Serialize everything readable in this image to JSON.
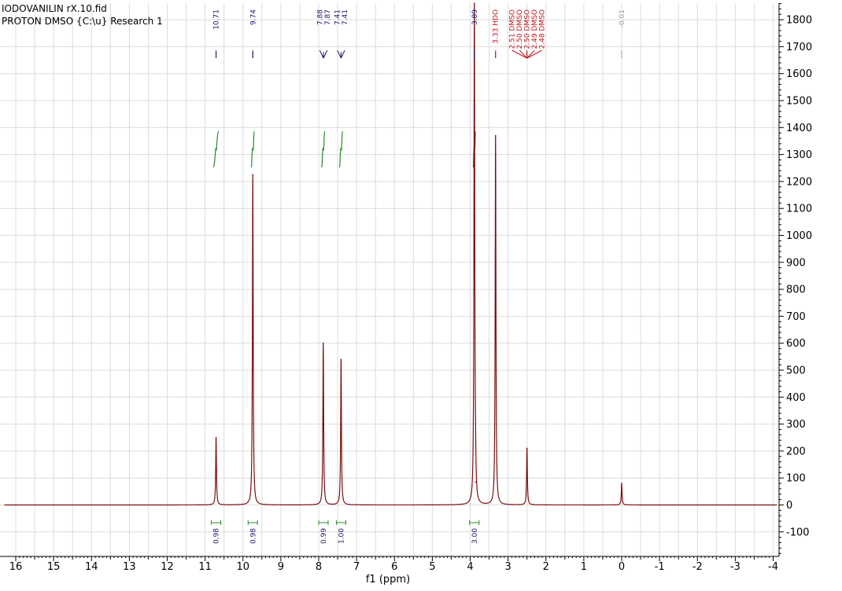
{
  "header": {
    "line1": "IODOVANILIN rX.10.fid",
    "line2": "PROTON DMSO {C:\\u} Research 1"
  },
  "chart_data": {
    "type": "line",
    "xlabel": "f1 (ppm)",
    "ylabel": "",
    "xlim": [
      16.3,
      -4.1
    ],
    "ylim": [
      -190,
      1870
    ],
    "x_ticks": [
      16,
      15,
      14,
      13,
      12,
      11,
      10,
      9,
      8,
      7,
      6,
      5,
      4,
      3,
      2,
      1,
      0,
      -1,
      -2,
      -3,
      -4
    ],
    "x_tick_labels": [
      "16",
      "15",
      "14",
      "13",
      "12",
      "11",
      "10",
      "9",
      "8",
      "7",
      "6",
      "5",
      "4",
      "3",
      "2",
      "1",
      "0",
      "-1",
      "-2",
      "-3",
      "-4"
    ],
    "y_ticks": [
      -100,
      0,
      100,
      200,
      300,
      400,
      500,
      600,
      700,
      800,
      900,
      1000,
      1100,
      1200,
      1300,
      1400,
      1500,
      1600,
      1700,
      1800
    ],
    "y_tick_labels": [
      "-100",
      "0",
      "100",
      "200",
      "300",
      "400",
      "500",
      "600",
      "700",
      "800",
      "900",
      "1000",
      "1100",
      "1200",
      "1300",
      "1400",
      "1500",
      "1600",
      "1700",
      "1800"
    ],
    "grid": true,
    "y_axis_side": "right",
    "spectrum_color": "#7a0f0f",
    "series": [
      {
        "peaks": [
          {
            "x": 10.71,
            "y": 250
          },
          {
            "x": 9.74,
            "y": 1225
          },
          {
            "x": 7.88,
            "y": 600
          },
          {
            "x": 7.41,
            "y": 540
          },
          {
            "x": 3.89,
            "y": 1880
          },
          {
            "x": 3.86,
            "y": 85
          },
          {
            "x": 3.33,
            "y": 1370
          },
          {
            "x": 2.5,
            "y": 210
          },
          {
            "x": 0.0,
            "y": 80
          }
        ]
      }
    ],
    "peak_annotations": [
      {
        "x": 10.71,
        "labels": [
          "10.71"
        ],
        "color": "#1a1a6e"
      },
      {
        "x": 9.74,
        "labels": [
          "9.74"
        ],
        "color": "#1a1a6e"
      },
      {
        "x": 7.875,
        "labels": [
          "7.88",
          "7.87"
        ],
        "color": "#1a1a6e"
      },
      {
        "x": 7.41,
        "labels": [
          "7.41",
          "7.41"
        ],
        "color": "#1a1a6e"
      },
      {
        "x": 3.89,
        "labels": [
          "3.89"
        ],
        "color": "#1a1a6e"
      },
      {
        "x": 3.33,
        "labels": [
          "3.33 HDO"
        ],
        "color": "#c0141e"
      },
      {
        "x": 2.5,
        "labels": [
          "2.51 DMSO",
          "2.50 DMSO",
          "2.50 DMSO",
          "2.49 DMSO",
          "2.48 DMSO"
        ],
        "color": "#c0141e"
      },
      {
        "x": 0.0,
        "labels": [
          "-0.01"
        ],
        "color": "#999999"
      }
    ],
    "integrals": [
      {
        "x": 10.71,
        "value": "0.98",
        "curve_from": 10.78,
        "curve_to": 10.64
      },
      {
        "x": 9.74,
        "value": "0.98",
        "curve_from": 9.78,
        "curve_to": 9.7
      },
      {
        "x": 7.875,
        "value": "0.99",
        "curve_from": 7.92,
        "curve_to": 7.84
      },
      {
        "x": 7.41,
        "value": "1.00",
        "curve_from": 7.45,
        "curve_to": 7.37
      },
      {
        "x": 3.89,
        "value": "3.00",
        "curve_from": 3.92,
        "curve_to": 3.86
      }
    ],
    "integral_color": "#2a8a2a"
  }
}
